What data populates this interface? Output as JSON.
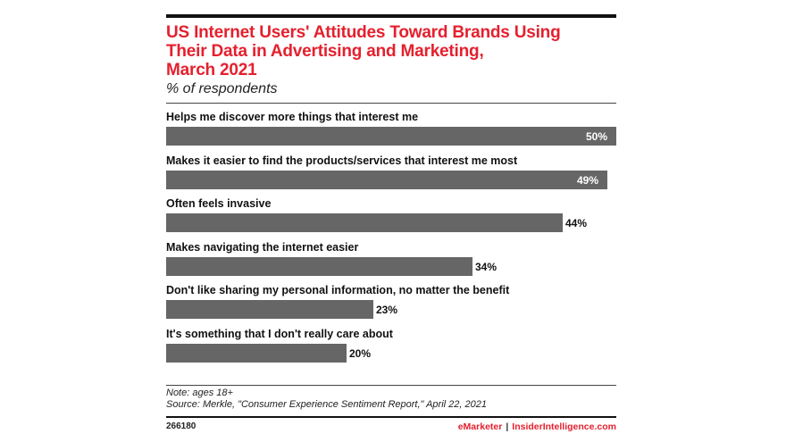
{
  "title_line1": "US Internet Users' Attitudes Toward Brands Using",
  "title_line2": "Their Data in Advertising and Marketing,",
  "title_line3": "March 2021",
  "subtitle": "% of respondents",
  "note": "Note: ages 18+",
  "source": "Source: Merkle, \"Consumer Experience Sentiment Report,\" April 22, 2021",
  "footer_id": "266180",
  "footer_brand": "eMarketer",
  "footer_separator": "|",
  "footer_site": "InsiderIntelligence.com",
  "colors": {
    "accent": "#e5202e",
    "bar": "#666666"
  },
  "chart_data": {
    "type": "bar",
    "orientation": "horizontal",
    "categories": [
      "Helps me discover more things that interest me",
      "Makes it easier to find the products/services that interest me most",
      "Often feels invasive",
      "Makes navigating the internet easier",
      "Don't like sharing my personal information, no matter the benefit",
      "It's something that I don't really care about"
    ],
    "values": [
      50,
      49,
      44,
      34,
      23,
      20
    ],
    "value_labels": [
      "50%",
      "49%",
      "44%",
      "34%",
      "23%",
      "20%"
    ],
    "xlim": [
      0,
      50
    ],
    "grid": false
  }
}
